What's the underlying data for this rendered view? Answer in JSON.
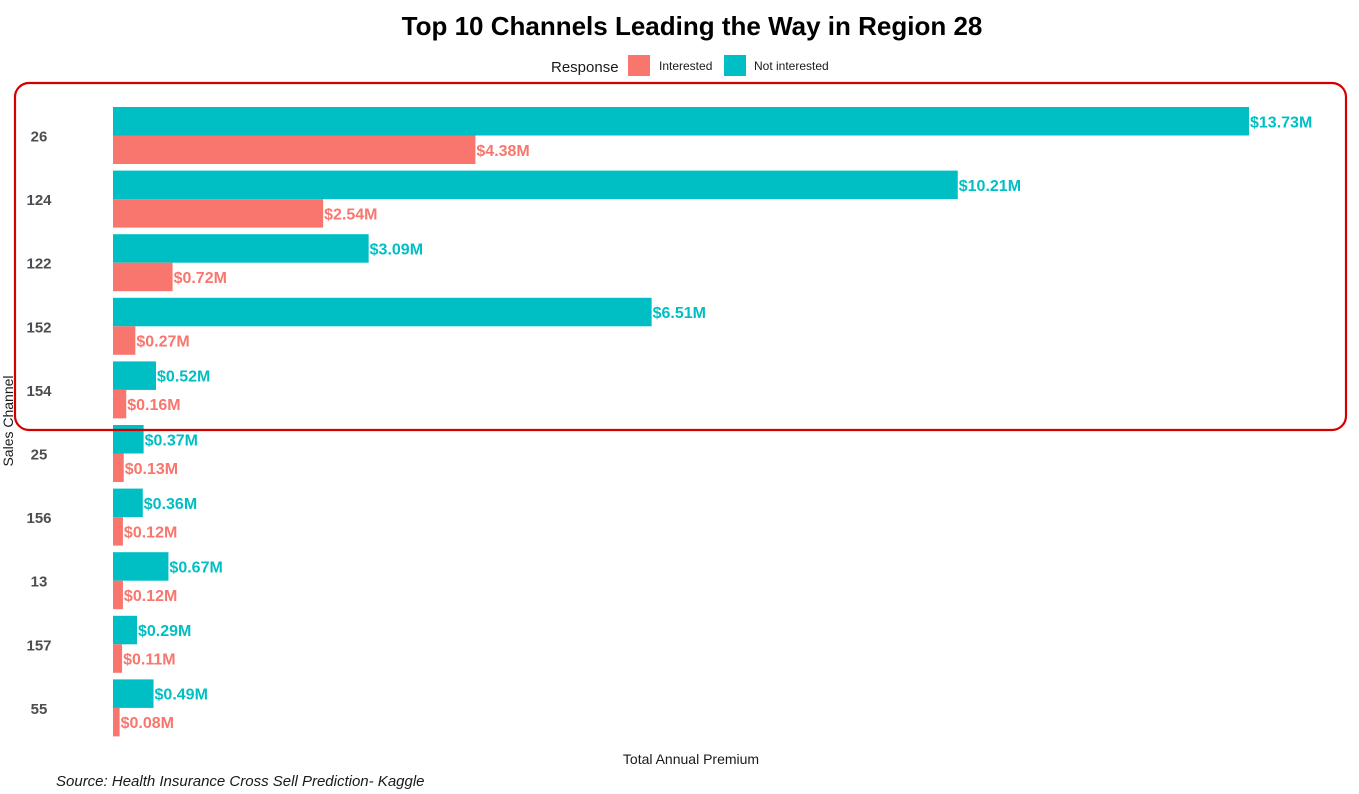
{
  "chart_data": {
    "type": "bar",
    "orientation": "horizontal",
    "title": "Top 10 Channels Leading the Way in Region 28",
    "xlabel": "Total Annual Premium",
    "ylabel": "Sales Channel",
    "grid": false,
    "legend": {
      "title": "Response",
      "placement": "top",
      "entries": [
        "Interested",
        "Not interested"
      ]
    },
    "categories": [
      "26",
      "124",
      "122",
      "152",
      "154",
      "25",
      "156",
      "13",
      "157",
      "55"
    ],
    "series": [
      {
        "name": "Not interested",
        "color": "#00BFC4",
        "values": [
          13.73,
          10.21,
          3.09,
          6.51,
          0.52,
          0.37,
          0.36,
          0.67,
          0.29,
          0.49
        ],
        "labels": [
          "$13.73M",
          "$10.21M",
          "$3.09M",
          "$6.51M",
          "$0.52M",
          "$0.37M",
          "$0.36M",
          "$0.67M",
          "$0.29M",
          "$0.49M"
        ]
      },
      {
        "name": "Interested",
        "color": "#F8766D",
        "values": [
          4.38,
          2.54,
          0.72,
          0.27,
          0.16,
          0.13,
          0.12,
          0.12,
          0.11,
          0.08
        ],
        "labels": [
          "$4.38M",
          "$2.54M",
          "$0.72M",
          "$0.27M",
          "$0.16M",
          "$0.13M",
          "$0.12M",
          "$0.12M",
          "$0.11M",
          "$0.08M"
        ]
      }
    ],
    "value_unit": "$M",
    "xlim": [
      0,
      13.73
    ],
    "highlight": {
      "categories": [
        "26",
        "124",
        "122",
        "152",
        "154"
      ],
      "color": "#D40000"
    },
    "source": "Source: Health Insurance Cross Sell Prediction- Kaggle"
  }
}
